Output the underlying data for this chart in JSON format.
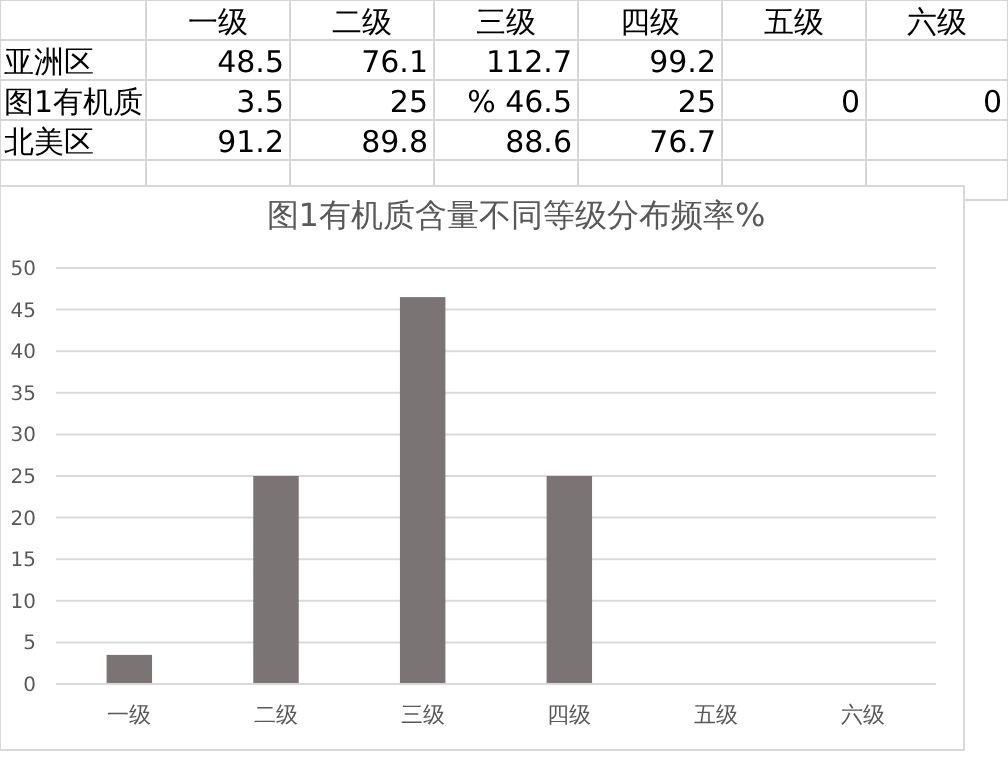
{
  "chart_data": [
    {
      "type": "other",
      "data_labels": true,
      "categories": [
        "一级",
        "二级",
        "三级",
        "四级",
        "五级",
        "六级"
      ],
      "series": [
        {
          "name": "亚洲区",
          "values": [
            48.5,
            76.1,
            112.7,
            99.2,
            null,
            null
          ]
        },
        {
          "name": "图1有机质",
          "values": [
            3.5,
            25,
            46.5,
            25,
            0,
            0
          ],
          "value_labels": [
            "3.5",
            "25",
            "% 46.5",
            "25",
            "0",
            "0"
          ]
        },
        {
          "name": "北美区",
          "values": [
            91.2,
            89.8,
            88.6,
            76.7,
            null,
            null
          ]
        }
      ]
    },
    {
      "type": "bar",
      "title": "图1有机质含量不同等级分布频率%",
      "categories": [
        "一级",
        "二级",
        "三级",
        "四级",
        "五级",
        "六级"
      ],
      "values": [
        3.5,
        25,
        46.5,
        25,
        0,
        0
      ],
      "color": "#7a7574",
      "ylim": [
        0,
        50
      ],
      "yticks": [
        0,
        5,
        10,
        15,
        20,
        25,
        30,
        35,
        40,
        45,
        50
      ],
      "grid": "y"
    }
  ]
}
